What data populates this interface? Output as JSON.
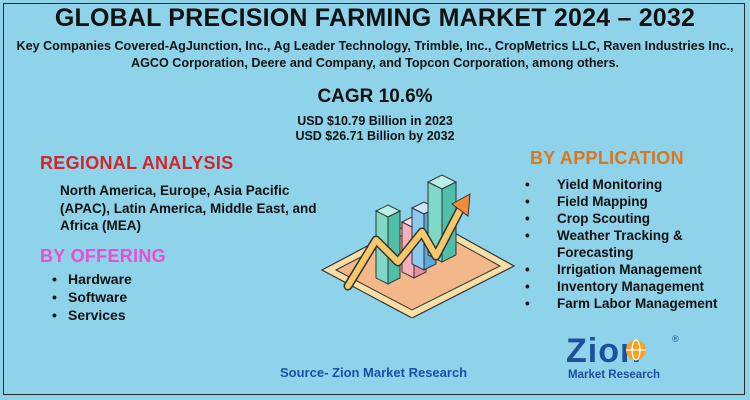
{
  "header": {
    "title": "GLOBAL PRECISION FARMING MARKET 2024 – 2032",
    "companies": "Key Companies Covered-AgJunction, Inc., Ag Leader Technology, Trimble, Inc., CropMetrics LLC, Raven Industries Inc., AGCO Corporation, Deere and Company, and Topcon Corporation, among others."
  },
  "growth": {
    "cagr": "CAGR 10.6%",
    "usd_2023": "USD $10.79 Billion in 2023",
    "usd_2032": "USD $26.71 Billion by 2032"
  },
  "regional": {
    "heading": "REGIONAL ANALYSIS",
    "text": "North America, Europe, Asia Pacific (APAC), Latin America, Middle East, and Africa (MEA)"
  },
  "offering": {
    "heading": "BY OFFERING",
    "items": [
      "Hardware",
      "Software",
      "Services"
    ]
  },
  "application": {
    "heading": "BY APPLICATION",
    "items": [
      "Yield Monitoring",
      "Field Mapping",
      "Crop Scouting",
      "Weather Tracking & Forecasting",
      "Irrigation Management",
      "Inventory Management",
      "Farm Labor Management"
    ]
  },
  "source": "Source- Zion Market Research",
  "logo": {
    "word": "Zion",
    "sub": "Market Research",
    "registered": "®"
  },
  "colors": {
    "background": "#8ed3ea",
    "regional_heading": "#d0262b",
    "offering_heading": "#e84fd3",
    "application_heading": "#d9771e",
    "source": "#1b4fa8",
    "logo_blue": "#1d4f9c",
    "logo_orange": "#f2a227"
  },
  "icons": {
    "illustration": "growth-bar-chart-illustration",
    "logo_globe": "globe-icon"
  }
}
